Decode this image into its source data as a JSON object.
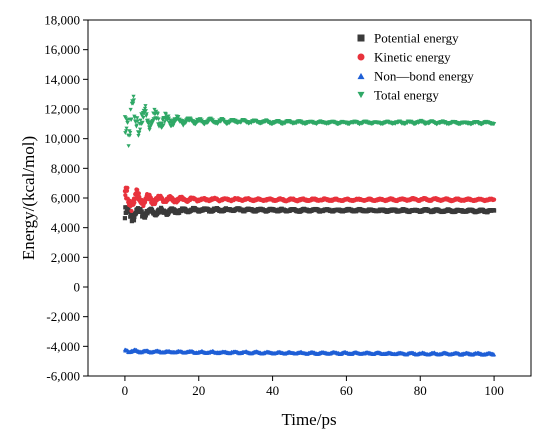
{
  "chart_data": {
    "type": "scatter",
    "xlabel": "Time/ps",
    "ylabel": "Energy/(kcal/mol)",
    "xlim": [
      -10,
      110
    ],
    "ylim": [
      -6000,
      18000
    ],
    "x_ticks": [
      0,
      20,
      40,
      60,
      80,
      100
    ],
    "x_tick_labels": [
      "0",
      "20",
      "40",
      "60",
      "80",
      "100"
    ],
    "y_ticks": [
      -6000,
      -4000,
      -2000,
      0,
      2000,
      4000,
      6000,
      8000,
      10000,
      12000,
      14000,
      16000,
      18000
    ],
    "y_tick_labels": [
      "-6,000",
      "-4,000",
      "-2,000",
      "0",
      "2,000",
      "4,000",
      "6,000",
      "8,000",
      "10,000",
      "12,000",
      "14,000",
      "16,000",
      "18,000"
    ],
    "legend_position": "top-right",
    "grid": false,
    "series": [
      {
        "name": "Potential energy",
        "marker": "square",
        "color": "#3a3a3a",
        "x": [
          0,
          1,
          2,
          3,
          5,
          8,
          12,
          16,
          20,
          30,
          40,
          50,
          60,
          70,
          80,
          90,
          100
        ],
        "y": [
          5000,
          4800,
          4900,
          4950,
          5000,
          5050,
          5100,
          5150,
          5200,
          5200,
          5180,
          5170,
          5170,
          5160,
          5150,
          5140,
          5130
        ],
        "spread": [
          800,
          600,
          550,
          450,
          380,
          300,
          220,
          160,
          140,
          110,
          100,
          100,
          90,
          90,
          100,
          90,
          90
        ]
      },
      {
        "name": "Kinetic energy",
        "marker": "circle",
        "color": "#e8323c",
        "x": [
          0,
          1,
          2,
          3,
          5,
          8,
          12,
          16,
          20,
          30,
          40,
          50,
          60,
          70,
          80,
          90,
          100
        ],
        "y": [
          5800,
          6000,
          5900,
          5950,
          5900,
          5900,
          5900,
          5900,
          5900,
          5900,
          5880,
          5880,
          5880,
          5880,
          5900,
          5880,
          5880
        ],
        "spread": [
          1000,
          900,
          800,
          700,
          500,
          380,
          260,
          180,
          140,
          110,
          100,
          100,
          90,
          90,
          110,
          90,
          90
        ]
      },
      {
        "name": "Non—bond energy",
        "marker": "triangle-up",
        "color": "#1f5fd6",
        "x": [
          0,
          1,
          2,
          3,
          5,
          8,
          12,
          16,
          20,
          30,
          40,
          50,
          60,
          70,
          80,
          90,
          100
        ],
        "y": [
          -4300,
          -4250,
          -4300,
          -4320,
          -4340,
          -4350,
          -4360,
          -4370,
          -4380,
          -4400,
          -4420,
          -4440,
          -4450,
          -4470,
          -4480,
          -4490,
          -4500
        ],
        "spread": [
          180,
          160,
          140,
          120,
          100,
          90,
          80,
          80,
          80,
          80,
          80,
          80,
          80,
          80,
          80,
          80,
          80
        ]
      },
      {
        "name": "Total energy",
        "marker": "triangle-down",
        "color": "#2fa866",
        "x": [
          0,
          1,
          2,
          3,
          5,
          8,
          12,
          16,
          20,
          30,
          40,
          50,
          60,
          70,
          80,
          90,
          100
        ],
        "y": [
          11200,
          11400,
          11400,
          11300,
          11300,
          11250,
          11200,
          11200,
          11150,
          11150,
          11100,
          11080,
          11070,
          11060,
          11080,
          11050,
          11050
        ],
        "spread": [
          2100,
          2000,
          1800,
          1500,
          1100,
          800,
          500,
          330,
          230,
          160,
          130,
          110,
          100,
          100,
          130,
          100,
          100
        ]
      }
    ]
  }
}
